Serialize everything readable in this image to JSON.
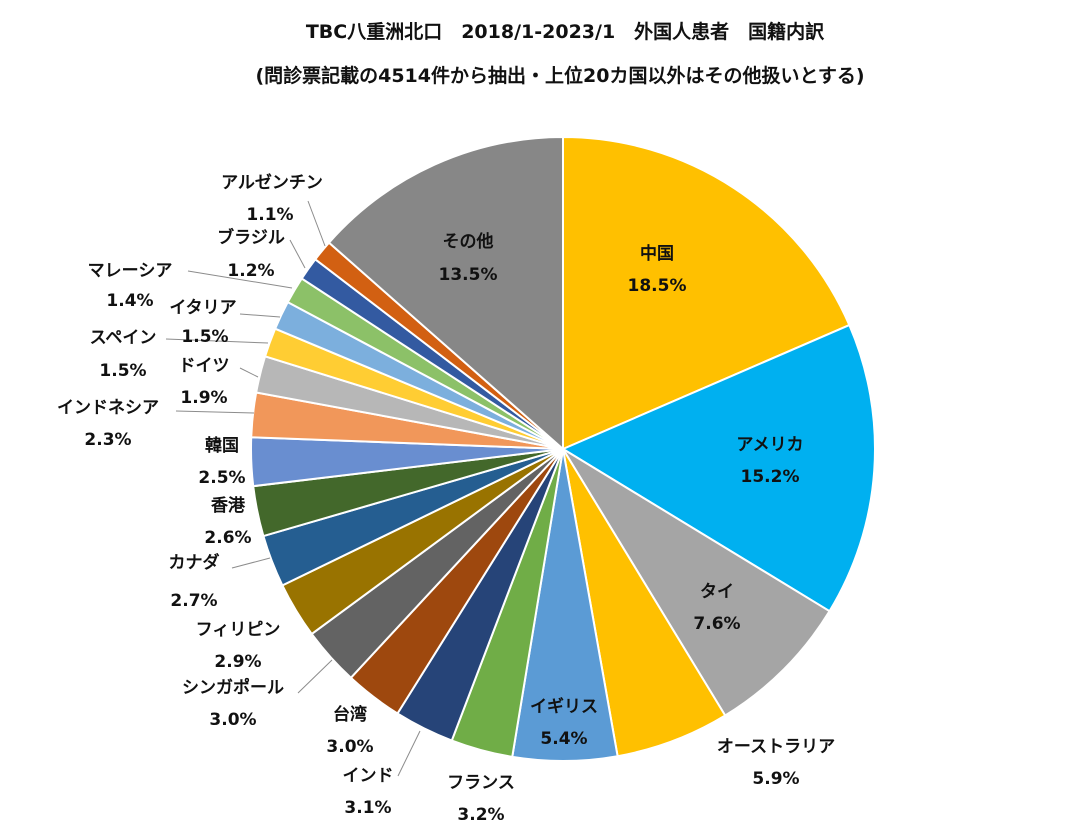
{
  "chart_data": {
    "type": "pie",
    "title": "TBC八重洲北口　2018/1-2023/1　外国人患者　国籍内訳",
    "subtitle": "(問診票記載の4514件から抽出・上位20カ国以外はその他扱いとする)",
    "start": "12 o'clock",
    "direction": "clockwise",
    "slices": [
      {
        "label": "中国",
        "value_label": "18.5%",
        "value": 18.5,
        "color": "#FFC000"
      },
      {
        "label": "アメリカ",
        "value_label": "15.2%",
        "value": 15.2,
        "color": "#00B0F0"
      },
      {
        "label": "タイ",
        "value_label": "7.6%",
        "value": 7.6,
        "color": "#A5A5A5"
      },
      {
        "label": "オーストラリア",
        "value_label": "5.9%",
        "value": 5.9,
        "color": "#FFC000"
      },
      {
        "label": "イギリス",
        "value_label": "5.4%",
        "value": 5.4,
        "color": "#5B9BD5"
      },
      {
        "label": "フランス",
        "value_label": "3.2%",
        "value": 3.2,
        "color": "#70AD47"
      },
      {
        "label": "インド",
        "value_label": "3.1%",
        "value": 3.1,
        "color": "#264478"
      },
      {
        "label": "台湾",
        "value_label": "3.0%",
        "value": 3.0,
        "color": "#9E480E"
      },
      {
        "label": "シンガポール",
        "value_label": "3.0%",
        "value": 3.0,
        "color": "#636363"
      },
      {
        "label": "フィリピン",
        "value_label": "2.9%",
        "value": 2.9,
        "color": "#997300"
      },
      {
        "label": "カナダ",
        "value_label": "2.7%",
        "value": 2.7,
        "color": "#255E91"
      },
      {
        "label": "香港",
        "value_label": "2.6%",
        "value": 2.6,
        "color": "#43682B"
      },
      {
        "label": "韓国",
        "value_label": "2.5%",
        "value": 2.5,
        "color": "#698ED0"
      },
      {
        "label": "インドネシア",
        "value_label": "2.3%",
        "value": 2.3,
        "color": "#F1975A"
      },
      {
        "label": "ドイツ",
        "value_label": "1.9%",
        "value": 1.9,
        "color": "#B7B7B7"
      },
      {
        "label": "スペイン",
        "value_label": "1.5%",
        "value": 1.5,
        "color": "#FFCD33"
      },
      {
        "label": "イタリア",
        "value_label": "1.5%",
        "value": 1.5,
        "color": "#7CAFDD"
      },
      {
        "label": "マレーシア",
        "value_label": "1.4%",
        "value": 1.4,
        "color": "#8CC168"
      },
      {
        "label": "ブラジル",
        "value_label": "1.2%",
        "value": 1.2,
        "color": "#335AA1"
      },
      {
        "label": "アルゼンチン",
        "value_label": "1.1%",
        "value": 1.1,
        "color": "#D26012"
      },
      {
        "label": "その他",
        "value_label": "13.5%",
        "value": 13.5,
        "color": "#878787"
      }
    ]
  }
}
